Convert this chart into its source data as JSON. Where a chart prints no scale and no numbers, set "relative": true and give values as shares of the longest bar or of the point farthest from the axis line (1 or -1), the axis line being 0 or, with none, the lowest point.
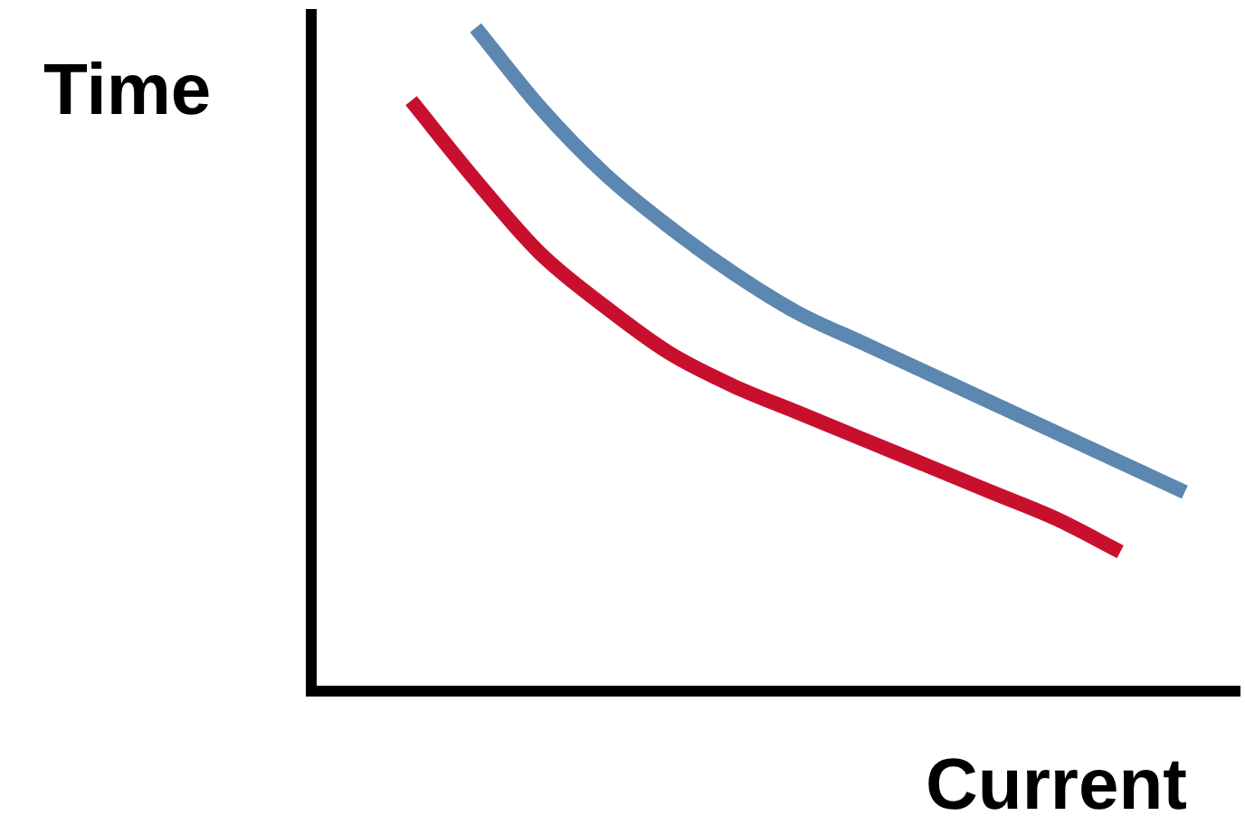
{
  "chart_data": {
    "type": "line",
    "relative": true,
    "xlabel": "Current",
    "ylabel": "Time",
    "categories": [
      null,
      null,
      null,
      null,
      null,
      null,
      null,
      null,
      null,
      null,
      null,
      null,
      null
    ],
    "series": [
      {
        "color": "#5b87b0",
        "values": [
          null,
          1,
          0.88,
          0.78,
          0.7,
          0.63,
          0.57,
          0.525,
          0.48,
          0.435,
          0.39,
          0.345,
          0.3
        ]
      },
      {
        "color": "#c8102e",
        "values": [
          0.89,
          0.77,
          0.66,
          0.58,
          0.51,
          0.46,
          0.42,
          0.38,
          0.34,
          0.3,
          0.26,
          0.21,
          null
        ]
      }
    ],
    "grid": false,
    "legend": false,
    "marker": "none",
    "line_style": "solid"
  }
}
